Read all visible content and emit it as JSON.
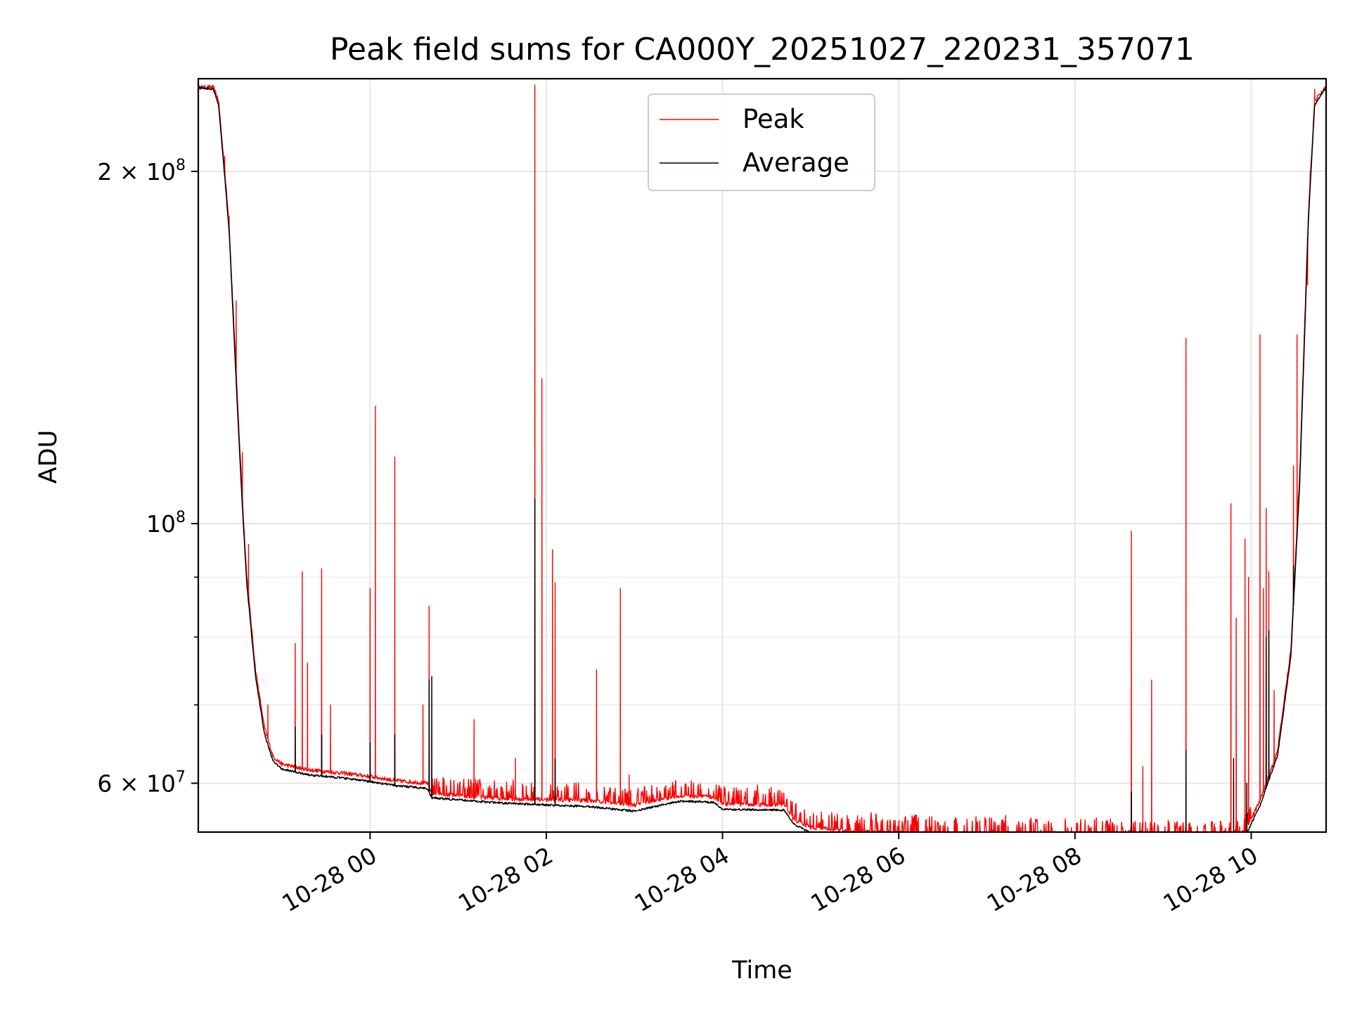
{
  "chart_data": {
    "type": "line",
    "title": "Peak field sums for CA000Y_20251027_220231_357071",
    "xlabel": "Time",
    "ylabel": "ADU",
    "yscale": "log",
    "ylim": [
      54500000,
      240000000
    ],
    "xlim_hours": [
      -1.95,
      10.85
    ],
    "grid": true,
    "legend_position": "top-center",
    "x_ticks": [
      {
        "label": "10-28 00",
        "hour": 0
      },
      {
        "label": "10-28 02",
        "hour": 2
      },
      {
        "label": "10-28 04",
        "hour": 4
      },
      {
        "label": "10-28 06",
        "hour": 6
      },
      {
        "label": "10-28 08",
        "hour": 8
      },
      {
        "label": "10-28 10",
        "hour": 10
      }
    ],
    "y_major_ticks": [
      {
        "label": "6×10⁷",
        "base": "6 × 10",
        "exp": "7",
        "value": 60000000
      },
      {
        "label": "10⁸",
        "base": "10",
        "exp": "8",
        "value": 100000000
      },
      {
        "label": "2×10⁸",
        "base": "2 × 10",
        "exp": "8",
        "value": 200000000
      }
    ],
    "y_minor_ticks": [
      70000000,
      80000000,
      90000000
    ],
    "series": [
      {
        "name": "Peak",
        "color": "#ff0000",
        "baseline": [
          [
            -1.95,
            236000000
          ],
          [
            -1.78,
            236000000
          ],
          [
            -1.72,
            230000000
          ],
          [
            -1.65,
            200000000
          ],
          [
            -1.6,
            180000000
          ],
          [
            -1.55,
            150000000
          ],
          [
            -1.5,
            125000000
          ],
          [
            -1.45,
            105000000
          ],
          [
            -1.4,
            90000000
          ],
          [
            -1.3,
            75000000
          ],
          [
            -1.2,
            67000000
          ],
          [
            -1.1,
            63200000
          ],
          [
            -1.0,
            62300000
          ],
          [
            -0.7,
            61600000
          ],
          [
            -0.3,
            61200000
          ],
          [
            0,
            60800000
          ],
          [
            0.3,
            60300000
          ],
          [
            0.65,
            60000000
          ],
          [
            0.7,
            58800000
          ],
          [
            1.5,
            58200000
          ],
          [
            2.5,
            58000000
          ],
          [
            3.0,
            57500000
          ],
          [
            3.5,
            58500000
          ],
          [
            3.9,
            58400000
          ],
          [
            4.0,
            57600000
          ],
          [
            4.7,
            57500000
          ],
          [
            4.8,
            55900000
          ],
          [
            5.0,
            55000000
          ],
          [
            5.5,
            54600000
          ],
          [
            6.5,
            54300000
          ],
          [
            7.5,
            54200000
          ],
          [
            8.5,
            54000000
          ],
          [
            9.5,
            53700000
          ],
          [
            9.9,
            53900000
          ],
          [
            10.1,
            58000000
          ],
          [
            10.3,
            64000000
          ],
          [
            10.45,
            78000000
          ],
          [
            10.55,
            110000000
          ],
          [
            10.65,
            185000000
          ],
          [
            10.72,
            230000000
          ],
          [
            10.85,
            236000000
          ]
        ],
        "spikes": [
          [
            -1.65,
            206000000
          ],
          [
            -1.6,
            183000000
          ],
          [
            -1.52,
            155000000
          ],
          [
            -1.45,
            115000000
          ],
          [
            -1.38,
            96000000
          ],
          [
            -1.16,
            70000000
          ],
          [
            -0.85,
            79000000
          ],
          [
            -0.77,
            91000000
          ],
          [
            -0.71,
            76000000
          ],
          [
            -0.55,
            91500000
          ],
          [
            -0.45,
            70000000
          ],
          [
            0,
            88000000
          ],
          [
            0.06,
            126000000
          ],
          [
            0.28,
            114000000
          ],
          [
            0.6,
            70000000
          ],
          [
            0.67,
            85000000
          ],
          [
            1.18,
            68000000
          ],
          [
            1.65,
            63000000
          ],
          [
            1.87,
            237000000
          ],
          [
            1.95,
            133000000
          ],
          [
            2.07,
            95000000
          ],
          [
            2.1,
            89000000
          ],
          [
            2.57,
            75000000
          ],
          [
            2.84,
            88000000
          ],
          [
            2.94,
            61000000
          ],
          [
            8.64,
            98500000
          ],
          [
            8.77,
            62000000
          ],
          [
            8.87,
            73500000
          ],
          [
            9.26,
            144000000
          ],
          [
            9.77,
            104000000
          ],
          [
            9.83,
            83000000
          ],
          [
            9.93,
            97000000
          ],
          [
            9.97,
            90000000
          ],
          [
            10.1,
            145000000
          ],
          [
            10.14,
            88000000
          ],
          [
            10.17,
            103000000
          ],
          [
            10.2,
            91000000
          ],
          [
            10.26,
            72000000
          ],
          [
            10.48,
            112000000
          ],
          [
            10.52,
            145000000
          ],
          [
            10.64,
            160000000
          ],
          [
            10.67,
            200000000
          ],
          [
            10.72,
            235000000
          ]
        ]
      },
      {
        "name": "Average",
        "color": "#000000",
        "baseline": [
          [
            -1.95,
            236000000
          ],
          [
            -1.78,
            235000000
          ],
          [
            -1.72,
            228000000
          ],
          [
            -1.65,
            198000000
          ],
          [
            -1.6,
            178000000
          ],
          [
            -1.55,
            148000000
          ],
          [
            -1.5,
            123000000
          ],
          [
            -1.45,
            103500000
          ],
          [
            -1.4,
            89000000
          ],
          [
            -1.3,
            74000000
          ],
          [
            -1.2,
            66200000
          ],
          [
            -1.1,
            62600000
          ],
          [
            -1.0,
            61700000
          ],
          [
            -0.7,
            61000000
          ],
          [
            -0.3,
            60600000
          ],
          [
            0,
            60200000
          ],
          [
            0.3,
            59700000
          ],
          [
            0.65,
            59400000
          ],
          [
            0.7,
            58300000
          ],
          [
            1.5,
            57700000
          ],
          [
            2.5,
            57300000
          ],
          [
            3.0,
            56800000
          ],
          [
            3.5,
            57900000
          ],
          [
            3.9,
            57800000
          ],
          [
            4.0,
            57000000
          ],
          [
            4.7,
            56900000
          ],
          [
            4.8,
            55400000
          ],
          [
            5.0,
            54400000
          ],
          [
            5.5,
            54000000
          ],
          [
            6.5,
            53900000
          ],
          [
            7.5,
            53700000
          ],
          [
            8.5,
            53500000
          ],
          [
            9.5,
            53200000
          ],
          [
            9.9,
            53400000
          ],
          [
            10.1,
            57400000
          ],
          [
            10.3,
            63400000
          ],
          [
            10.45,
            77000000
          ],
          [
            10.55,
            108000000
          ],
          [
            10.65,
            182000000
          ],
          [
            10.72,
            228000000
          ],
          [
            10.85,
            236000000
          ]
        ],
        "spikes": [
          [
            -0.85,
            67000000
          ],
          [
            -0.55,
            66000000
          ],
          [
            0,
            65000000
          ],
          [
            0.28,
            66000000
          ],
          [
            0.67,
            73500000
          ],
          [
            0.7,
            74000000
          ],
          [
            1.87,
            105000000
          ],
          [
            2.1,
            63000000
          ],
          [
            8.64,
            59000000
          ],
          [
            9.26,
            64000000
          ],
          [
            9.8,
            63000000
          ],
          [
            9.95,
            60000000
          ],
          [
            10.17,
            80000000
          ],
          [
            10.2,
            81000000
          ],
          [
            10.48,
            92000000
          ]
        ]
      }
    ]
  }
}
